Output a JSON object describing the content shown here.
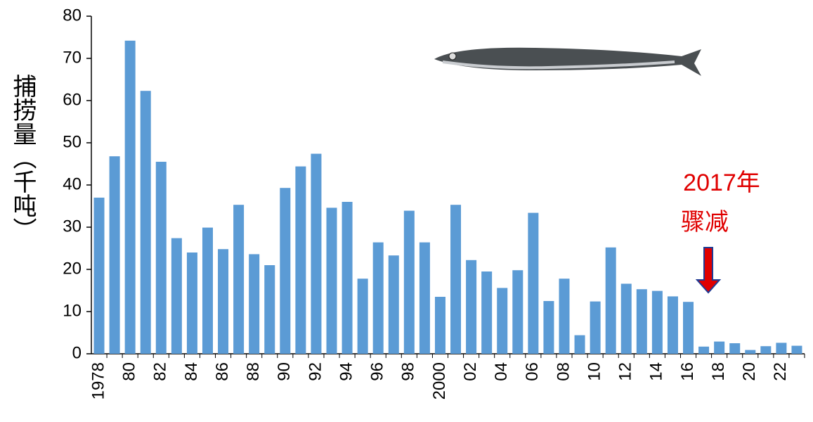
{
  "chart_data": {
    "type": "bar",
    "y_label": "捕捞量（千吨）",
    "annotation": [
      "2017年",
      "骤减"
    ],
    "categories": [
      "1978",
      null,
      "80",
      null,
      "82",
      null,
      "84",
      null,
      "86",
      null,
      "88",
      null,
      "90",
      null,
      "92",
      null,
      "94",
      null,
      "96",
      null,
      "98",
      null,
      "2000",
      null,
      "02",
      null,
      "04",
      null,
      "06",
      null,
      "08",
      null,
      "10",
      null,
      "12",
      null,
      "14",
      null,
      "16",
      null,
      "18",
      null,
      "20",
      null,
      "22",
      null
    ],
    "values": [
      37,
      46.8,
      74.2,
      62.3,
      45.5,
      27.4,
      24,
      29.9,
      24.8,
      35.3,
      23.6,
      21,
      39.3,
      44.4,
      47.4,
      34.6,
      36,
      17.8,
      26.4,
      23.3,
      33.9,
      26.4,
      13.5,
      35.3,
      22.2,
      19.5,
      15.6,
      19.8,
      33.4,
      12.5,
      17.8,
      4.4,
      12.4,
      25.2,
      16.6,
      15.3,
      14.9,
      13.6,
      12.3,
      1.7,
      2.9,
      2.5,
      0.9,
      1.8,
      2.6,
      1.9
    ],
    "color": "#5b9bd5",
    "ylim": [
      0,
      80
    ],
    "yticks": [
      0,
      10,
      20,
      30,
      40,
      50,
      60,
      70,
      80
    ],
    "grid": false
  }
}
